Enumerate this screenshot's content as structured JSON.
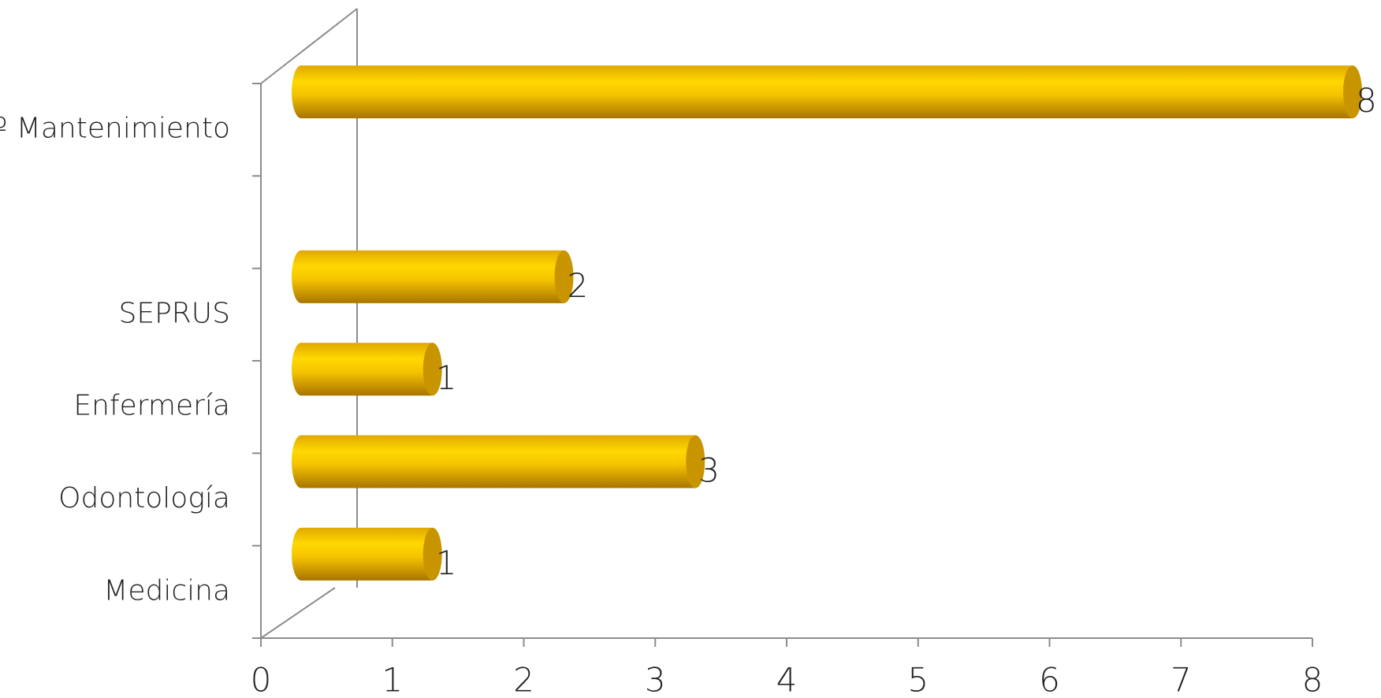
{
  "chart_data": {
    "type": "bar3d",
    "categories": [
      "Sº Mantenimiento",
      null,
      "SEPRUS",
      "Enfermería",
      "Odontología",
      "Medicina"
    ],
    "values": [
      8,
      null,
      2,
      1,
      3,
      1
    ],
    "color": "#f5c400",
    "xlim": [
      0,
      8
    ],
    "xticks": [
      0,
      1,
      2,
      3,
      4,
      5,
      6,
      7,
      8
    ]
  }
}
